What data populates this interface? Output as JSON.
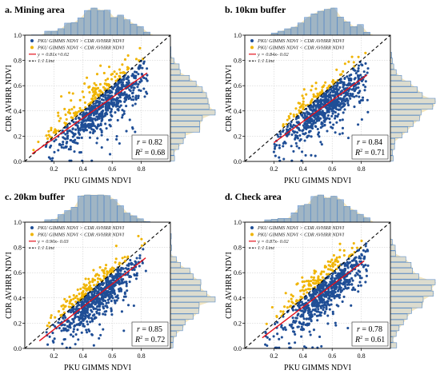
{
  "colors": {
    "above": "#1f4e96",
    "below": "#f0b400",
    "fit": "#e4111b",
    "oneone": "#000000",
    "histTop": "#f3e4bb",
    "histSideFill": "#dcdccf",
    "histBlue": "#5b8cc6"
  },
  "chart_data": [
    {
      "type": "scatter",
      "title": "a. Mining area",
      "xlabel": "PKU GIMMS NDVI",
      "ylabel": "CDR AVHRR NDVI",
      "xlim": [
        0,
        1.0
      ],
      "ylim": [
        0,
        1.0
      ],
      "xticks": [
        "0.2",
        "0.4",
        "0.6",
        "0.8"
      ],
      "yticks": [
        "0.0",
        "0.2",
        "0.4",
        "0.6",
        "0.8",
        "1.0"
      ],
      "grid": true,
      "legend_position": "top-left",
      "legend": [
        "PKU GIMMS NDVI > CDR AVHRR NDVI",
        "PKU GIMMS NDVI < CDR AVHRR NDVI",
        "y = 0.81x+0.02",
        "1:1 Line"
      ],
      "fit": {
        "slope": 0.81,
        "intercept": 0.02,
        "x_range": [
          0.05,
          0.84
        ]
      },
      "point_cloud": {
        "center": 0.52,
        "spread": 0.17,
        "x_range": [
          0.05,
          0.85
        ],
        "scatter": 0.1
      },
      "stats": {
        "r_label": "r",
        "r": "= 0.82",
        "r2_label": "R",
        "r2_sup": "2",
        "r2": "= 0.68"
      }
    },
    {
      "type": "scatter",
      "title": "b. 10km buffer",
      "xlabel": "PKU GIMMS NDVI",
      "ylabel": "CDR AVHRR NDVI",
      "xlim": [
        0,
        1.0
      ],
      "ylim": [
        0,
        1.0
      ],
      "xticks": [
        "0.2",
        "0.4",
        "0.6",
        "0.8"
      ],
      "yticks": [
        "0.0",
        "0.2",
        "0.4",
        "0.6",
        "0.8",
        "1.0"
      ],
      "grid": true,
      "legend_position": "top-left",
      "legend": [
        "PKU GIMMS NDVI > CDR AVHRR NDVI",
        "PKU GIMMS NDVI < CDR AVHRR NDVI",
        "y = 0.84x- 0.02",
        "1:1 Line"
      ],
      "fit": {
        "slope": 0.84,
        "intercept": -0.02,
        "x_range": [
          0.2,
          0.84
        ]
      },
      "point_cloud": {
        "center": 0.55,
        "spread": 0.15,
        "x_range": [
          0.2,
          0.85
        ],
        "scatter": 0.085
      },
      "stats": {
        "r_label": "r",
        "r": "= 0.84",
        "r2_label": "R",
        "r2_sup": "2",
        "r2": "= 0.71"
      }
    },
    {
      "type": "scatter",
      "title": "c. 20km buffer",
      "xlabel": "PKU GIMMS NDVI",
      "ylabel": "CDR AVHRR NDVI",
      "xlim": [
        0,
        1.0
      ],
      "ylim": [
        0,
        1.0
      ],
      "xticks": [
        "0.2",
        "0.4",
        "0.6",
        "0.8"
      ],
      "yticks": [
        "0.0",
        "0.2",
        "0.4",
        "0.6",
        "0.8",
        "1.0"
      ],
      "grid": true,
      "legend_position": "top-left",
      "legend": [
        "PKU GIMMS NDVI > CDR AVHRR NDVI",
        "PKU GIMMS NDVI < CDR AVHRR NDVI",
        "y = 0.90x- 0.03",
        "1:1 Line"
      ],
      "fit": {
        "slope": 0.9,
        "intercept": -0.03,
        "x_range": [
          0.1,
          0.83
        ]
      },
      "point_cloud": {
        "center": 0.5,
        "spread": 0.15,
        "x_range": [
          0.12,
          0.84
        ],
        "scatter": 0.085
      },
      "stats": {
        "r_label": "r",
        "r": "= 0.85",
        "r2_label": "R",
        "r2_sup": "2",
        "r2": "= 0.72"
      }
    },
    {
      "type": "scatter",
      "title": "d. Check area",
      "xlabel": "PKU GIMMS NDVI",
      "ylabel": "CDR AVHRR NDVI",
      "xlim": [
        0,
        1.0
      ],
      "ylim": [
        0,
        1.0
      ],
      "xticks": [
        "0.2",
        "0.4",
        "0.6",
        "0.8"
      ],
      "yticks": [
        "0.0",
        "0.2",
        "0.4",
        "0.6",
        "0.8",
        "1.0"
      ],
      "grid": true,
      "legend_position": "top-left",
      "legend": [
        "PKU GIMMS NDVI > CDR AVHRR NDVI",
        "PKU GIMMS NDVI < CDR AVHRR NDVI",
        "y = 0.87x- 0.02",
        "1:1 Line"
      ],
      "fit": {
        "slope": 0.87,
        "intercept": -0.02,
        "x_range": [
          0.12,
          0.82
        ]
      },
      "point_cloud": {
        "center": 0.55,
        "spread": 0.15,
        "x_range": [
          0.12,
          0.85
        ],
        "scatter": 0.09
      },
      "stats": {
        "r_label": "r",
        "r": "= 0.78",
        "r2_label": "R",
        "r2_sup": "2",
        "r2": "= 0.61"
      }
    }
  ]
}
